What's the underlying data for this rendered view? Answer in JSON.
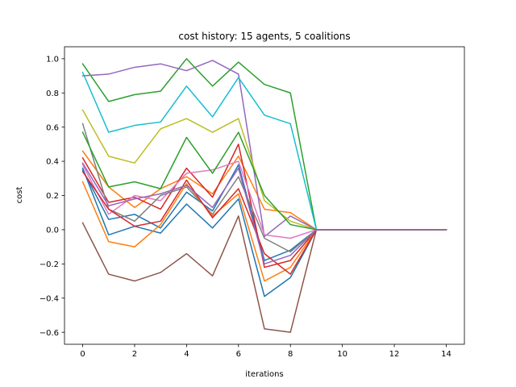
{
  "chart_data": {
    "type": "line",
    "title": "cost history: 15 agents, 5 coalitions",
    "xlabel": "iterations",
    "ylabel": "cost",
    "xlim": [
      -0.7,
      14.7
    ],
    "ylim": [
      -0.67,
      1.07
    ],
    "xticks": [
      0,
      2,
      4,
      6,
      8,
      10,
      12,
      14
    ],
    "yticks": [
      -0.6,
      -0.4,
      -0.2,
      0.0,
      0.2,
      0.4,
      0.6,
      0.8,
      1.0
    ],
    "ytick_labels": [
      "−0.6",
      "−0.4",
      "−0.2",
      "0.0",
      "0.2",
      "0.4",
      "0.6",
      "0.8",
      "1.0"
    ],
    "grid": false,
    "x": [
      0,
      1,
      2,
      3,
      4,
      5,
      6,
      7,
      8,
      9,
      10,
      11,
      12,
      13,
      14
    ],
    "series": [
      {
        "color": "#1f77b4",
        "values": [
          0.35,
          0.06,
          0.09,
          0.01,
          0.22,
          0.11,
          0.38,
          -0.18,
          -0.12,
          0,
          0,
          0,
          0,
          0,
          0
        ]
      },
      {
        "color": "#ff7f0e",
        "values": [
          0.46,
          0.25,
          0.13,
          0.24,
          0.31,
          0.21,
          0.43,
          0.12,
          0.1,
          0,
          0,
          0,
          0,
          0,
          0
        ]
      },
      {
        "color": "#2ca02c",
        "values": [
          0.97,
          0.75,
          0.79,
          0.81,
          1.0,
          0.84,
          0.98,
          0.85,
          0.8,
          0,
          0,
          0,
          0,
          0,
          0
        ]
      },
      {
        "color": "#d62728",
        "values": [
          0.42,
          0.16,
          0.19,
          0.12,
          0.36,
          0.19,
          0.5,
          -0.22,
          -0.18,
          0,
          0,
          0,
          0,
          0,
          0
        ]
      },
      {
        "color": "#9467bd",
        "values": [
          0.9,
          0.91,
          0.95,
          0.97,
          0.93,
          0.99,
          0.91,
          -0.04,
          0.08,
          0,
          0,
          0,
          0,
          0,
          0
        ]
      },
      {
        "color": "#8c564b",
        "values": [
          0.04,
          -0.26,
          -0.3,
          -0.25,
          -0.14,
          -0.27,
          0.08,
          -0.58,
          -0.6,
          0,
          0,
          0,
          0,
          0,
          0
        ]
      },
      {
        "color": "#e377c2",
        "values": [
          0.38,
          0.09,
          0.2,
          0.17,
          0.33,
          0.35,
          0.4,
          -0.03,
          -0.05,
          0,
          0,
          0,
          0,
          0,
          0
        ]
      },
      {
        "color": "#7f7f7f",
        "values": [
          0.62,
          0.12,
          0.05,
          0.2,
          0.25,
          0.09,
          0.31,
          -0.05,
          -0.13,
          0,
          0,
          0,
          0,
          0,
          0
        ]
      },
      {
        "color": "#bcbd22",
        "values": [
          0.7,
          0.43,
          0.39,
          0.59,
          0.65,
          0.57,
          0.65,
          0.17,
          0.05,
          0,
          0,
          0,
          0,
          0,
          0
        ]
      },
      {
        "color": "#17becf",
        "values": [
          0.92,
          0.57,
          0.61,
          0.63,
          0.84,
          0.66,
          0.89,
          0.67,
          0.62,
          0,
          0,
          0,
          0,
          0,
          0
        ]
      },
      {
        "color": "#1f77b4",
        "values": [
          0.36,
          -0.03,
          0.02,
          -0.02,
          0.15,
          0.01,
          0.18,
          -0.39,
          -0.28,
          0,
          0,
          0,
          0,
          0,
          0
        ]
      },
      {
        "color": "#ff7f0e",
        "values": [
          0.28,
          -0.07,
          -0.1,
          0.03,
          0.27,
          0.08,
          0.21,
          -0.3,
          -0.22,
          0,
          0,
          0,
          0,
          0,
          0
        ]
      },
      {
        "color": "#2ca02c",
        "values": [
          0.57,
          0.25,
          0.28,
          0.24,
          0.54,
          0.33,
          0.57,
          0.2,
          0.03,
          0,
          0,
          0,
          0,
          0,
          0
        ]
      },
      {
        "color": "#d62728",
        "values": [
          0.34,
          0.12,
          0.02,
          0.05,
          0.29,
          0.07,
          0.24,
          -0.14,
          -0.26,
          0,
          0,
          0,
          0,
          0,
          0
        ]
      },
      {
        "color": "#9467bd",
        "values": [
          0.39,
          0.14,
          0.18,
          0.21,
          0.26,
          0.13,
          0.36,
          -0.2,
          -0.15,
          0,
          0,
          0,
          0,
          0,
          0
        ]
      }
    ]
  }
}
